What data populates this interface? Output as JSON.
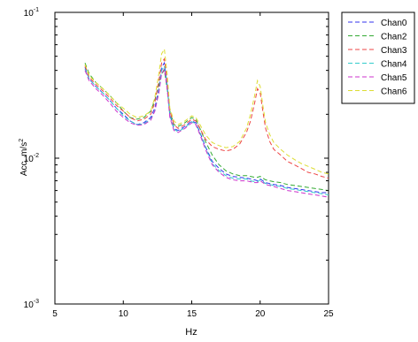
{
  "chart_data": {
    "type": "line",
    "title": "",
    "xlabel": "Hz",
    "ylabel": "Acc, m/s",
    "ylabel_sup": "2",
    "xlim": [
      5,
      25
    ],
    "ylim": [
      0.001,
      0.1
    ],
    "yscale": "log",
    "grid": false,
    "legend_position": "outside-top-right",
    "x_ticks": [
      {
        "value": 5,
        "label": "5"
      },
      {
        "value": 10,
        "label": "10"
      },
      {
        "value": 15,
        "label": "15"
      },
      {
        "value": 20,
        "label": "20"
      },
      {
        "value": 25,
        "label": "25"
      }
    ],
    "y_ticks": [
      {
        "value": 0.001,
        "base": "10",
        "exp": "-3"
      },
      {
        "value": 0.01,
        "base": "10",
        "exp": "-2"
      },
      {
        "value": 0.1,
        "base": "10",
        "exp": "-1"
      }
    ],
    "x": [
      7.2,
      7.5,
      8,
      8.5,
      9,
      9.5,
      10,
      10.5,
      11,
      11.5,
      12,
      12.3,
      12.6,
      12.8,
      13,
      13.2,
      13.4,
      13.7,
      14,
      14.5,
      15,
      15.3,
      15.6,
      16,
      16.5,
      17,
      17.5,
      18,
      18.5,
      19,
      19.3,
      19.6,
      19.8,
      20,
      20.2,
      20.4,
      20.7,
      21,
      21.5,
      22,
      22.5,
      23,
      23.5,
      24,
      24.5,
      25
    ],
    "series": [
      {
        "name": "Chan0",
        "color": "#3333ee",
        "values": [
          0.042,
          0.035,
          0.031,
          0.028,
          0.025,
          0.022,
          0.02,
          0.018,
          0.017,
          0.0175,
          0.019,
          0.022,
          0.03,
          0.042,
          0.045,
          0.032,
          0.02,
          0.016,
          0.0155,
          0.0165,
          0.018,
          0.0175,
          0.015,
          0.012,
          0.0095,
          0.0085,
          0.0078,
          0.0075,
          0.0074,
          0.0073,
          0.0072,
          0.0071,
          0.007,
          0.0072,
          0.007,
          0.0068,
          0.0067,
          0.0066,
          0.0065,
          0.0063,
          0.0062,
          0.0061,
          0.006,
          0.0059,
          0.0058,
          0.0058
        ]
      },
      {
        "name": "Chan2",
        "color": "#33aa33",
        "values": [
          0.045,
          0.038,
          0.033,
          0.03,
          0.027,
          0.024,
          0.021,
          0.019,
          0.0185,
          0.019,
          0.021,
          0.025,
          0.032,
          0.038,
          0.04,
          0.03,
          0.021,
          0.017,
          0.0165,
          0.0175,
          0.019,
          0.0185,
          0.016,
          0.013,
          0.0105,
          0.009,
          0.0082,
          0.0078,
          0.0076,
          0.0076,
          0.0075,
          0.0074,
          0.0074,
          0.0075,
          0.0073,
          0.0071,
          0.007,
          0.0069,
          0.0068,
          0.0066,
          0.0065,
          0.0064,
          0.0063,
          0.0062,
          0.0061,
          0.006
        ]
      },
      {
        "name": "Chan3",
        "color": "#ee4444",
        "values": [
          0.043,
          0.036,
          0.032,
          0.029,
          0.026,
          0.023,
          0.021,
          0.019,
          0.018,
          0.0185,
          0.02,
          0.024,
          0.034,
          0.045,
          0.048,
          0.034,
          0.021,
          0.017,
          0.016,
          0.017,
          0.0185,
          0.018,
          0.016,
          0.0135,
          0.012,
          0.0115,
          0.0112,
          0.0115,
          0.0125,
          0.015,
          0.018,
          0.024,
          0.03,
          0.028,
          0.021,
          0.016,
          0.013,
          0.0115,
          0.0105,
          0.0095,
          0.009,
          0.0085,
          0.008,
          0.0078,
          0.0075,
          0.0073
        ]
      },
      {
        "name": "Chan4",
        "color": "#33cccc",
        "values": [
          0.041,
          0.035,
          0.031,
          0.028,
          0.025,
          0.022,
          0.0195,
          0.018,
          0.017,
          0.0172,
          0.0185,
          0.021,
          0.029,
          0.04,
          0.043,
          0.031,
          0.0195,
          0.0158,
          0.0152,
          0.0162,
          0.0178,
          0.0172,
          0.0148,
          0.0118,
          0.0092,
          0.0082,
          0.0076,
          0.0073,
          0.0072,
          0.0072,
          0.007,
          0.0069,
          0.0069,
          0.0071,
          0.0069,
          0.0067,
          0.0066,
          0.0065,
          0.0064,
          0.0062,
          0.0061,
          0.006,
          0.0059,
          0.0058,
          0.0057,
          0.0056
        ]
      },
      {
        "name": "Chan5",
        "color": "#cc33cc",
        "values": [
          0.04,
          0.034,
          0.03,
          0.027,
          0.024,
          0.021,
          0.019,
          0.0175,
          0.0168,
          0.017,
          0.0182,
          0.021,
          0.028,
          0.038,
          0.041,
          0.03,
          0.019,
          0.0155,
          0.015,
          0.016,
          0.0175,
          0.017,
          0.0145,
          0.0115,
          0.009,
          0.008,
          0.0074,
          0.0071,
          0.007,
          0.007,
          0.0069,
          0.0068,
          0.0068,
          0.007,
          0.0068,
          0.0066,
          0.0065,
          0.0064,
          0.0062,
          0.006,
          0.0059,
          0.0058,
          0.0057,
          0.0056,
          0.0055,
          0.0054
        ]
      },
      {
        "name": "Chan6",
        "color": "#dddd33",
        "values": [
          0.044,
          0.037,
          0.033,
          0.03,
          0.027,
          0.024,
          0.022,
          0.02,
          0.019,
          0.0195,
          0.021,
          0.026,
          0.038,
          0.052,
          0.056,
          0.038,
          0.022,
          0.018,
          0.017,
          0.018,
          0.0195,
          0.019,
          0.017,
          0.0145,
          0.0128,
          0.0122,
          0.0118,
          0.012,
          0.013,
          0.016,
          0.02,
          0.027,
          0.034,
          0.031,
          0.023,
          0.0175,
          0.0145,
          0.0128,
          0.0115,
          0.0105,
          0.0098,
          0.0092,
          0.0088,
          0.0084,
          0.008,
          0.0078
        ]
      }
    ]
  }
}
